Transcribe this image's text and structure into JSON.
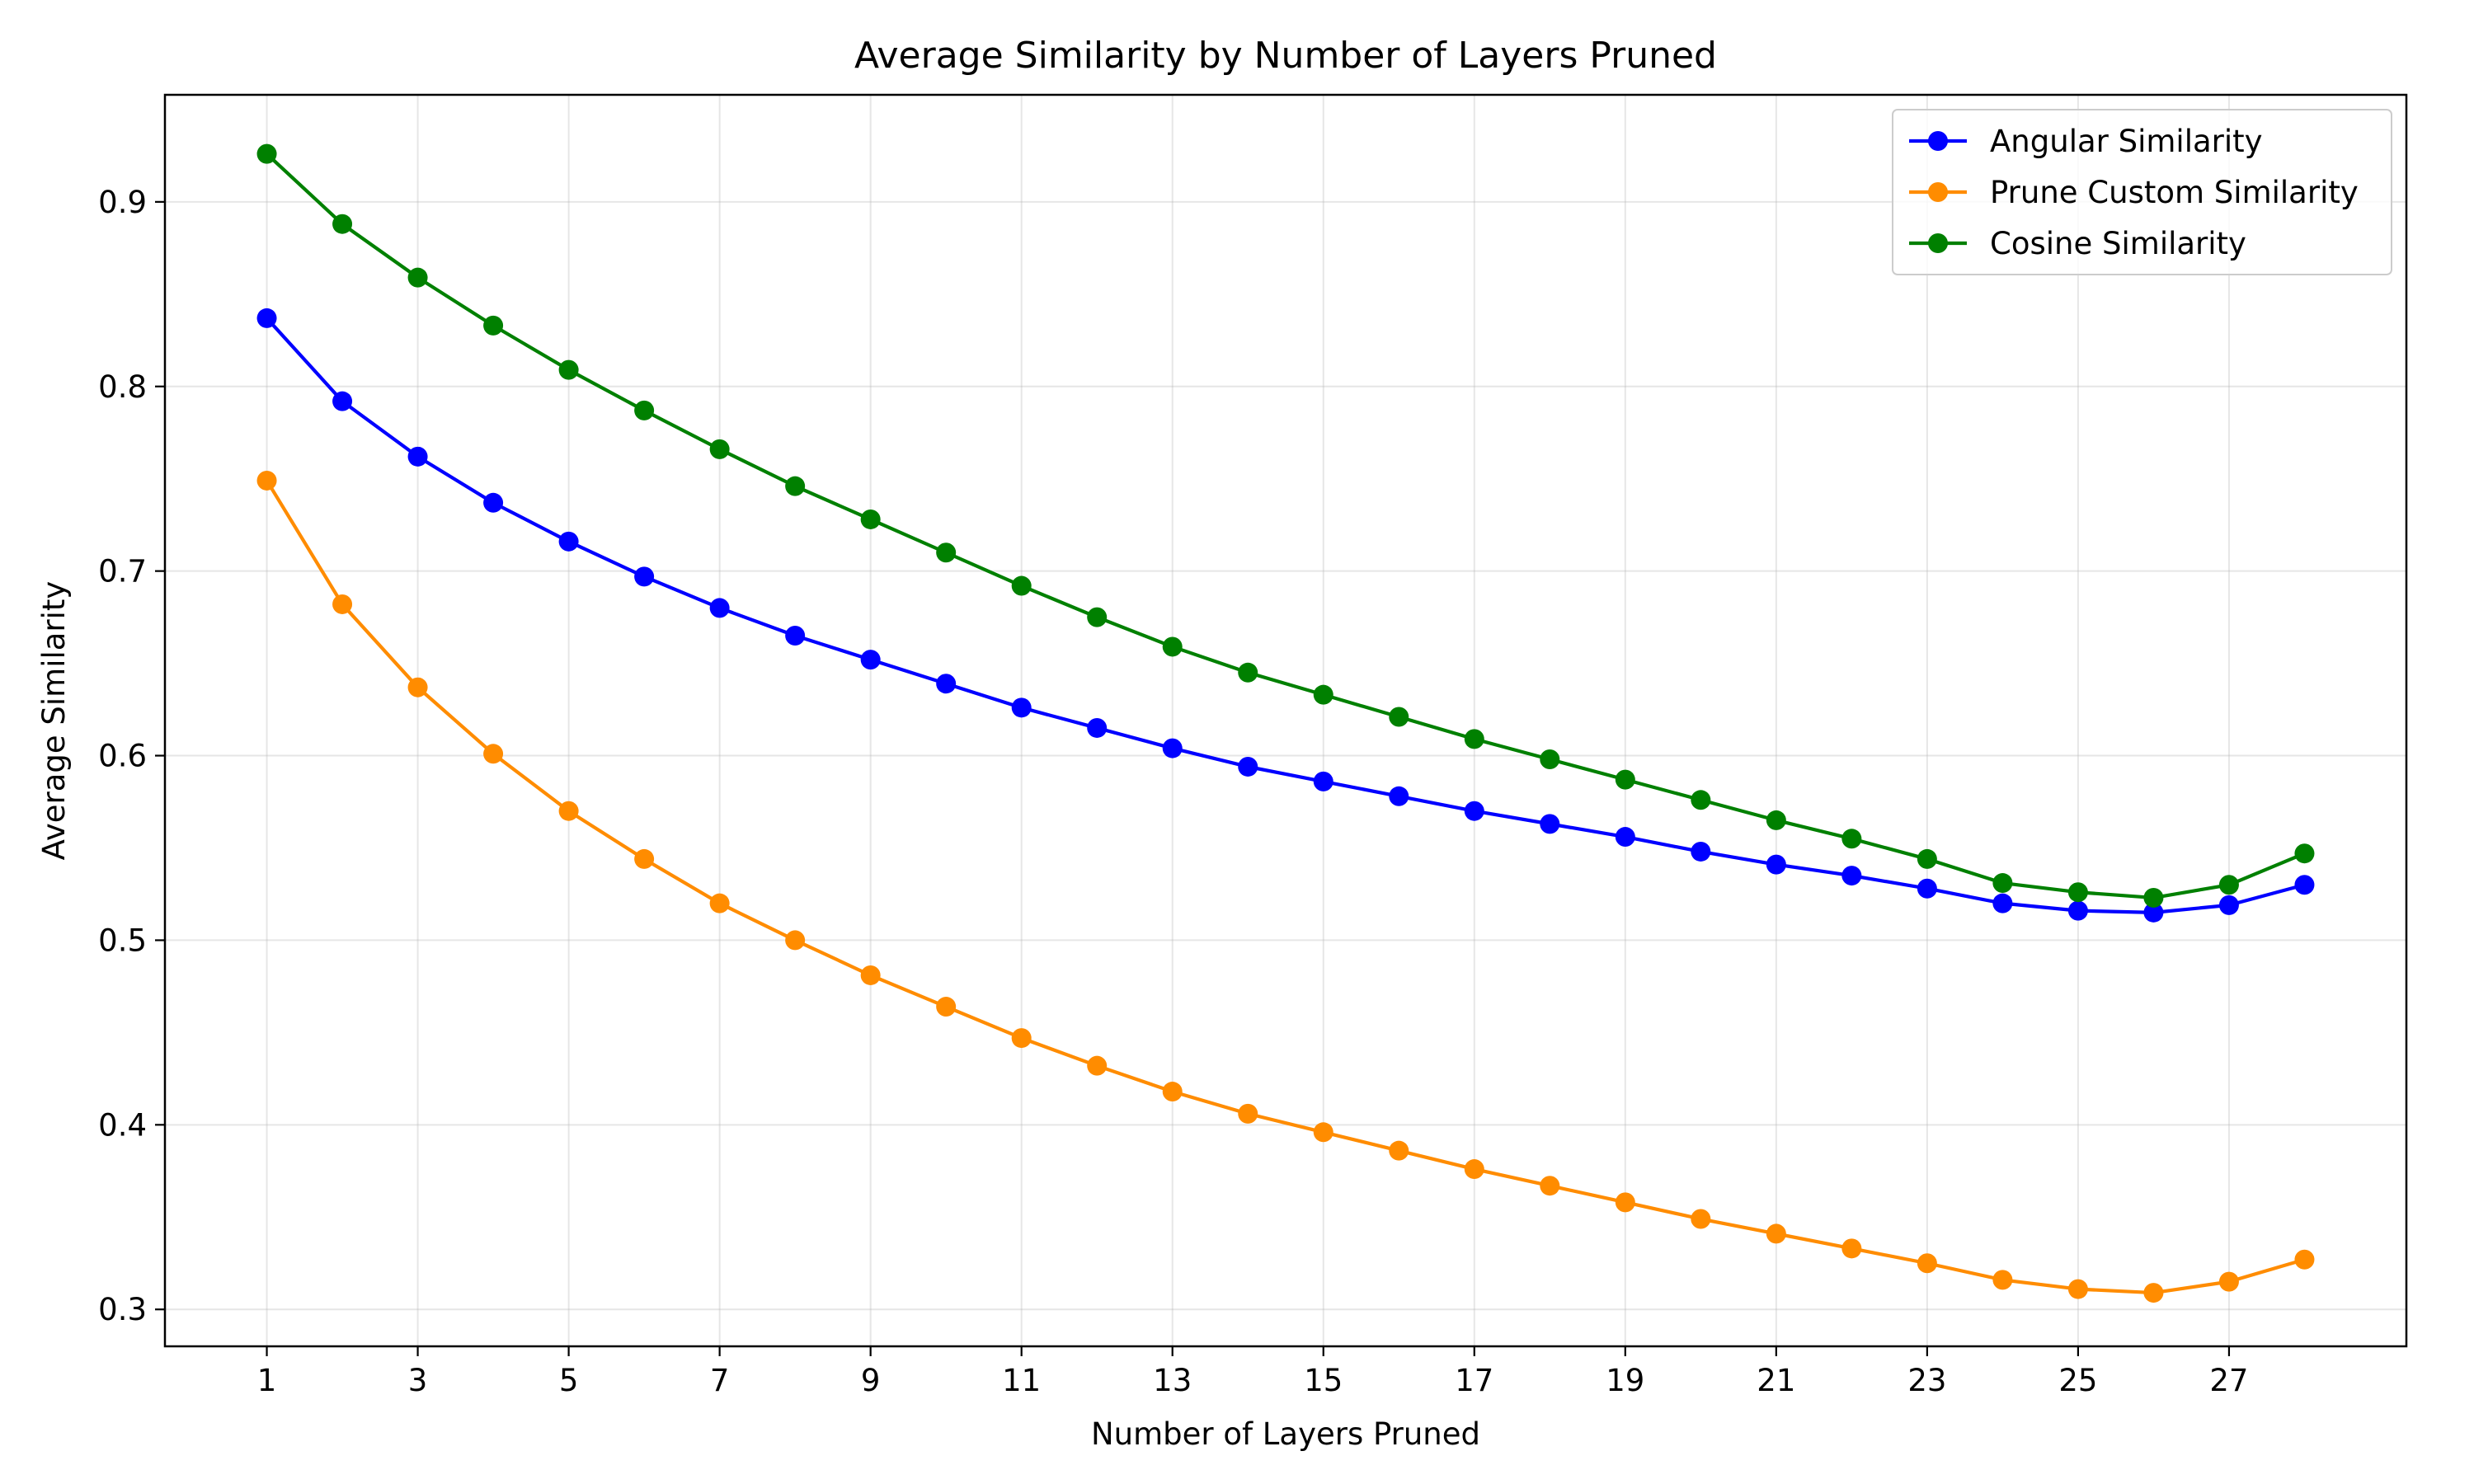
{
  "chart_data": {
    "type": "line",
    "title": "Average Similarity by Number of Layers Pruned",
    "xlabel": "Number of Layers Pruned",
    "ylabel": "Average Similarity",
    "xlim": [
      -0.35,
      29.35
    ],
    "ylim": [
      0.28,
      0.958
    ],
    "xticks": [
      1,
      3,
      5,
      7,
      9,
      11,
      13,
      15,
      17,
      19,
      21,
      23,
      25,
      27
    ],
    "yticks": [
      0.3,
      0.4,
      0.5,
      0.6,
      0.7,
      0.8,
      0.9
    ],
    "grid": true,
    "legend_position": "top-right",
    "x": [
      1,
      2,
      3,
      4,
      5,
      6,
      7,
      8,
      9,
      10,
      11,
      12,
      13,
      14,
      15,
      16,
      17,
      18,
      19,
      20,
      21,
      22,
      23,
      24,
      25,
      26,
      27,
      28
    ],
    "series": [
      {
        "name": "Angular Similarity",
        "color": "#0000ff",
        "values": [
          0.837,
          0.792,
          0.762,
          0.737,
          0.716,
          0.697,
          0.68,
          0.665,
          0.652,
          0.639,
          0.626,
          0.615,
          0.604,
          0.594,
          0.586,
          0.578,
          0.57,
          0.563,
          0.556,
          0.548,
          0.541,
          0.535,
          0.528,
          0.52,
          0.516,
          0.515,
          0.519,
          0.53
        ]
      },
      {
        "name": "Prune Custom Similarity",
        "color": "#ff8c00",
        "values": [
          0.749,
          0.682,
          0.637,
          0.601,
          0.57,
          0.544,
          0.52,
          0.5,
          0.481,
          0.464,
          0.447,
          0.432,
          0.418,
          0.406,
          0.396,
          0.386,
          0.376,
          0.367,
          0.358,
          0.349,
          0.341,
          0.333,
          0.325,
          0.316,
          0.311,
          0.309,
          0.315,
          0.327
        ]
      },
      {
        "name": "Cosine Similarity",
        "color": "#008000",
        "values": [
          0.926,
          0.888,
          0.859,
          0.833,
          0.809,
          0.787,
          0.766,
          0.746,
          0.728,
          0.71,
          0.692,
          0.675,
          0.659,
          0.645,
          0.633,
          0.621,
          0.609,
          0.598,
          0.587,
          0.576,
          0.565,
          0.555,
          0.544,
          0.531,
          0.526,
          0.523,
          0.53,
          0.547
        ]
      }
    ]
  }
}
